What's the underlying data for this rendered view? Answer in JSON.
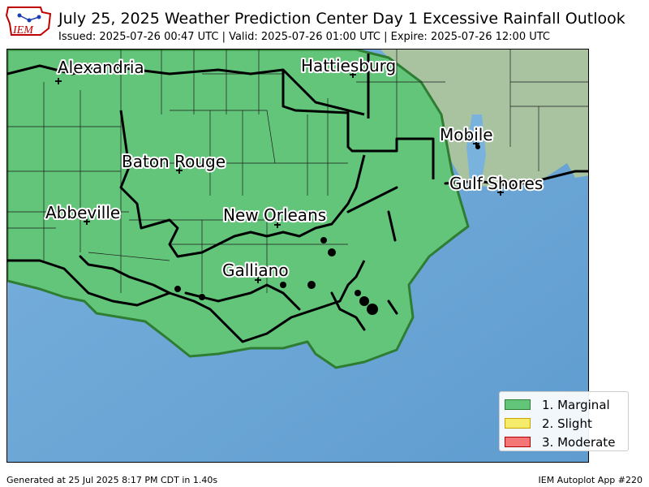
{
  "header": {
    "title": "July 25, 2025 Weather Prediction Center Day 1 Excessive Rainfall Outlook",
    "subtitle": "Issued: 2025-07-26 00:47 UTC | Valid: 2025-07-26 01:00 UTC | Expire: 2025-07-26 12:00 UTC",
    "logo_text": "IEM"
  },
  "map": {
    "cities": [
      {
        "name": "Alexandria"
      },
      {
        "name": "Hattiesburg"
      },
      {
        "name": "Baton Rouge"
      },
      {
        "name": "Mobile"
      },
      {
        "name": "Gulf Shores"
      },
      {
        "name": "Abbeville"
      },
      {
        "name": "New Orleans"
      },
      {
        "name": "Galliano"
      }
    ],
    "colors": {
      "marginal_area": "#63c57a",
      "water": "#6fa8d6",
      "land_outside": "#a9c3a0",
      "boundaries": "#000000"
    }
  },
  "legend": {
    "items": [
      {
        "label": "1. Marginal",
        "color": "#63c57a",
        "border": "#2e7d32"
      },
      {
        "label": "2. Slight",
        "color": "#f5ec6b",
        "border": "#c9a400"
      },
      {
        "label": "3. Moderate",
        "color": "#f47676",
        "border": "#b00000"
      }
    ]
  },
  "footer": {
    "left": "Generated at 25 Jul 2025 8:17 PM CDT in 1.40s",
    "right": "IEM Autoplot App #220"
  }
}
